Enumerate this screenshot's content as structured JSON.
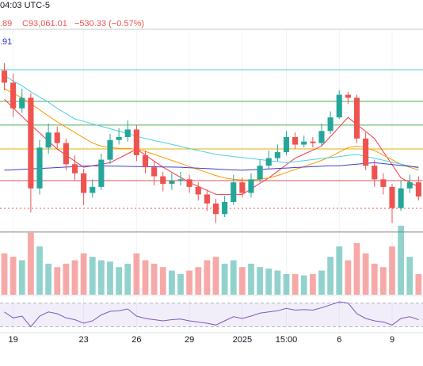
{
  "chart_data": {
    "type": "candlestick",
    "header": {
      "time": "04:03 UTC-5",
      "ohlc": ".89",
      "close": "C93,061.01",
      "change": "−530.33 (−0.57%)",
      "ma": ".91"
    },
    "categories": [
      null,
      "19",
      null,
      null,
      null,
      null,
      null,
      null,
      null,
      "23",
      null,
      null,
      null,
      null,
      null,
      "26",
      null,
      null,
      null,
      null,
      null,
      "29",
      null,
      null,
      null,
      null,
      null,
      "2025",
      null,
      null,
      null,
      null,
      "15:00",
      null,
      null,
      null,
      null,
      null,
      "6",
      null,
      null,
      null,
      null,
      null,
      "9",
      null,
      null,
      null
    ],
    "up_color": "#26a69a",
    "down_color": "#ef5350",
    "ylim": [
      90600,
      104500
    ],
    "open": [
      101400,
      100600,
      98900,
      99600,
      93600,
      96300,
      97300,
      96600,
      95200,
      94600,
      93300,
      93700,
      95500,
      96800,
      97000,
      97500,
      95800,
      95000,
      94400,
      93900,
      94100,
      94200,
      93700,
      93200,
      92600,
      91900,
      92700,
      94000,
      93300,
      94200,
      95100,
      95600,
      96000,
      97000,
      96500,
      96700,
      96600,
      97400,
      98300,
      99800,
      99600,
      96900,
      95100,
      94200,
      93700,
      92300,
      93600,
      94000
    ],
    "high": [
      101900,
      101200,
      100200,
      99900,
      96800,
      97900,
      97700,
      96900,
      95800,
      94900,
      94200,
      95900,
      97200,
      97600,
      98100,
      97800,
      96100,
      95400,
      94700,
      94600,
      94700,
      94500,
      94000,
      93500,
      92900,
      93100,
      94500,
      94300,
      94600,
      95500,
      96100,
      96500,
      97400,
      97300,
      97100,
      97000,
      97900,
      98700,
      100100,
      100000,
      99800,
      97300,
      95500,
      94600,
      93900,
      94100,
      94500,
      94400
    ],
    "low": [
      100100,
      98300,
      98600,
      92000,
      93200,
      95900,
      96200,
      94800,
      94100,
      92500,
      93000,
      93500,
      95200,
      96500,
      96700,
      95400,
      94600,
      93800,
      93400,
      93500,
      93800,
      93300,
      92800,
      92100,
      91300,
      91700,
      92500,
      93000,
      93000,
      94000,
      94900,
      95400,
      95800,
      96200,
      96300,
      96300,
      96400,
      97200,
      98200,
      99200,
      96600,
      94800,
      93700,
      93200,
      91300,
      92100,
      93300,
      92800
    ],
    "close": [
      100600,
      98900,
      99600,
      93600,
      96300,
      97300,
      96600,
      95200,
      94600,
      93300,
      93700,
      95500,
      96800,
      97000,
      97500,
      95800,
      95000,
      94400,
      93900,
      94100,
      94200,
      93700,
      93200,
      92600,
      91900,
      92700,
      94000,
      93300,
      94200,
      95100,
      95600,
      96000,
      97000,
      96500,
      96700,
      96600,
      97400,
      98300,
      99800,
      99600,
      96900,
      95100,
      94200,
      93700,
      92300,
      93600,
      94000,
      93061
    ],
    "overlays": [
      {
        "color": "#f23645",
        "values": [
          99500,
          98930,
          98370,
          97800,
          97270,
          96730,
          96200,
          95800,
          95400,
          95000,
          95100,
          95200,
          95300,
          95600,
          95900,
          96200,
          95800,
          95400,
          95000,
          94670,
          94330,
          94000,
          93730,
          93470,
          93200,
          93200,
          93200,
          93200,
          93570,
          93930,
          94300,
          94730,
          95170,
          95600,
          95870,
          96130,
          96400,
          97030,
          97670,
          98300,
          97830,
          97370,
          96900,
          96030,
          95170,
          94300,
          94000,
          93700
        ]
      },
      {
        "color": "#ff9800",
        "values": [
          100200,
          99900,
          99600,
          99200,
          98800,
          98400,
          98000,
          97650,
          97300,
          96950,
          96600,
          96400,
          96300,
          96250,
          96250,
          96200,
          96050,
          95850,
          95650,
          95450,
          95250,
          95050,
          94850,
          94650,
          94450,
          94300,
          94200,
          94150,
          94150,
          94200,
          94300,
          94450,
          94650,
          94850,
          95050,
          95250,
          95450,
          95700,
          96000,
          96300,
          96400,
          96300,
          96100,
          95800,
          95500,
          95200,
          95000,
          94800
        ]
      },
      {
        "color": "#4dd0e1",
        "values": [
          101100,
          100700,
          100400,
          100000,
          99650,
          99300,
          98900,
          98550,
          98200,
          98040,
          97870,
          97710,
          97550,
          97390,
          97230,
          97060,
          96900,
          96770,
          96640,
          96510,
          96380,
          96240,
          96110,
          95980,
          95850,
          95780,
          95710,
          95640,
          95580,
          95510,
          95440,
          95370,
          95300,
          95370,
          95440,
          95510,
          95580,
          95640,
          95710,
          95780,
          95850,
          95720,
          95590,
          95460,
          95330,
          95210,
          95080,
          94950
        ]
      },
      {
        "color": "#3f3fc8",
        "values": [
          94800,
          94830,
          94860,
          94890,
          94920,
          94950,
          94980,
          95010,
          95040,
          95070,
          95100,
          95090,
          95080,
          95070,
          95060,
          95050,
          95040,
          95030,
          95020,
          95010,
          95000,
          94970,
          94940,
          94910,
          94880,
          94850,
          94820,
          94800,
          94830,
          94860,
          94890,
          94920,
          94950,
          94980,
          95010,
          95040,
          95070,
          95100,
          95100,
          95150,
          95200,
          95250,
          95300,
          95240,
          95180,
          95120,
          95060,
          95000
        ]
      }
    ],
    "levels": [
      {
        "value": 101460,
        "color": "#4dd0c8",
        "dash": false
      },
      {
        "value": 99360,
        "color": "#4caf50",
        "dash": false
      },
      {
        "value": 97790,
        "color": "#4caf50",
        "dash": false
      },
      {
        "value": 96210,
        "color": "#e0b000",
        "dash": false
      },
      {
        "value": 94115,
        "color": "#e05050",
        "dash": false
      },
      {
        "value": 92280,
        "color": "#ef5350",
        "dash": true
      },
      {
        "value": 90710,
        "color": "#888888",
        "dash": false
      }
    ],
    "volume": [
      60,
      55,
      50,
      90,
      70,
      45,
      40,
      45,
      50,
      60,
      55,
      50,
      48,
      40,
      45,
      60,
      50,
      45,
      40,
      35,
      30,
      35,
      40,
      50,
      55,
      45,
      50,
      40,
      45,
      40,
      38,
      35,
      30,
      30,
      28,
      30,
      35,
      55,
      70,
      50,
      75,
      60,
      45,
      40,
      70,
      100,
      55,
      30
    ],
    "volume_lim": [
      0,
      100
    ],
    "rsi": [
      55,
      45,
      48,
      30,
      48,
      55,
      52,
      45,
      42,
      36,
      40,
      50,
      56,
      57,
      60,
      48,
      44,
      42,
      40,
      42,
      43,
      40,
      38,
      36,
      33,
      40,
      47,
      44,
      48,
      53,
      55,
      57,
      61,
      58,
      59,
      58,
      62,
      67,
      72,
      70,
      52,
      44,
      40,
      38,
      33,
      44,
      47,
      42
    ],
    "rsi_color": "#7e57c2",
    "rsi_ylim": [
      20,
      80
    ],
    "rsi_levels": [
      70,
      30
    ],
    "grid": true
  }
}
